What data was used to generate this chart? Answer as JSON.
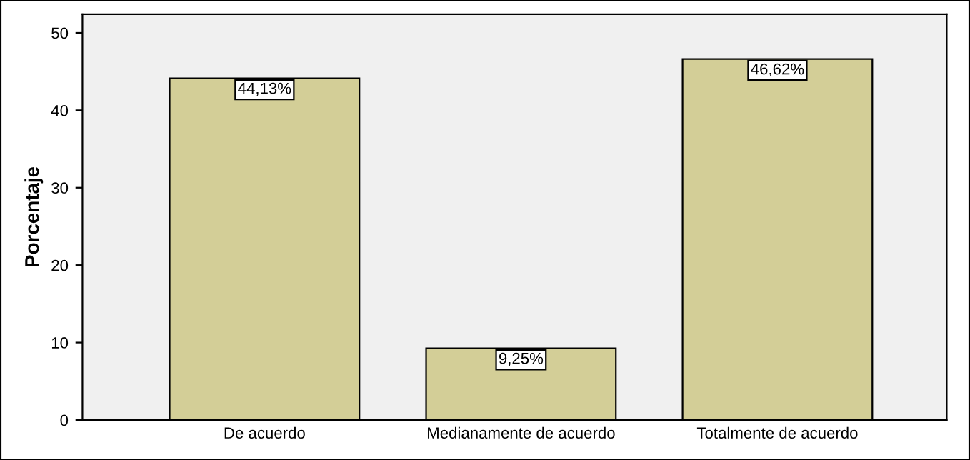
{
  "chart_data": {
    "type": "bar",
    "ylabel": "Porcentaje",
    "categories": [
      "De acuerdo",
      "Medianamente de acuerdo",
      "Totalmente de acuerdo"
    ],
    "values": [
      44.13,
      9.25,
      46.62
    ],
    "value_labels": [
      "44,13%",
      "9,25%",
      "46,62%"
    ],
    "color": "#d3ce97",
    "ylim": [
      0,
      52.4
    ],
    "yticks": [
      0,
      10,
      20,
      30,
      40,
      50
    ],
    "grid": false,
    "legend": false
  }
}
